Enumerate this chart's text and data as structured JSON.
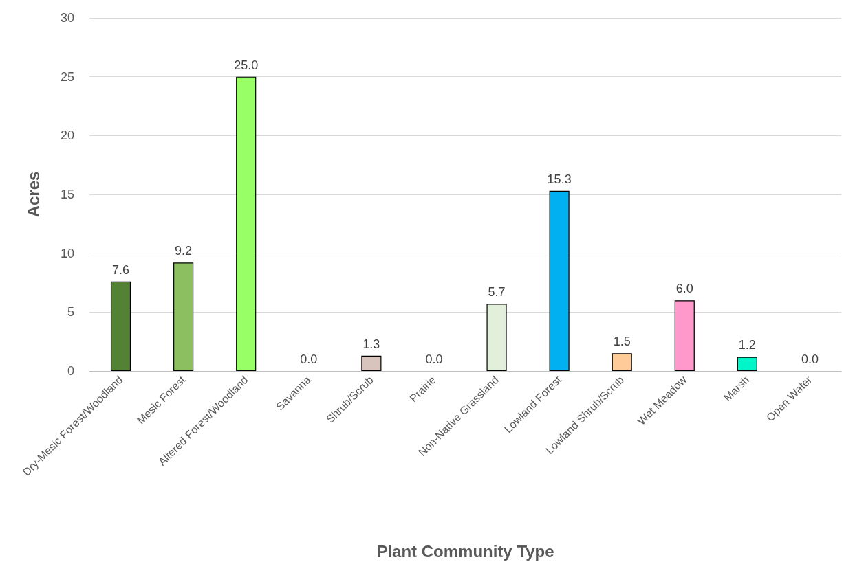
{
  "chart_data": {
    "type": "bar",
    "xlabel": "Plant Community Type",
    "ylabel": "Acres",
    "categories": [
      "Dry-Mesic Forest/Woodland",
      "Mesic Forest",
      "Altered Forest/Woodland",
      "Savanna",
      "Shrub/Scrub",
      "Prairie",
      "Non-Native Grassland",
      "Lowland Forest",
      "Lowland Shrub/Scrub",
      "Wet Meadow",
      "Marsh",
      "Open Water"
    ],
    "values": [
      7.6,
      9.2,
      25.0,
      0.0,
      1.3,
      0.0,
      5.7,
      15.3,
      1.5,
      6.0,
      1.2,
      0.0
    ],
    "value_labels": [
      "7.6",
      "9.2",
      "25.0",
      "0.0",
      "1.3",
      "0.0",
      "5.7",
      "15.3",
      "1.5",
      "6.0",
      "1.2",
      "0.0"
    ],
    "colors": [
      "#548235",
      "#8cbf5f",
      "#99ff66",
      null,
      "#d9c3bd",
      null,
      "#e2efda",
      "#00b0f0",
      "#ffcc99",
      "#ff99cc",
      "#00f5c8",
      null
    ],
    "ylim": [
      0,
      30
    ],
    "yticks": [
      0,
      5,
      10,
      15,
      20,
      25,
      30
    ],
    "grid": "y"
  }
}
